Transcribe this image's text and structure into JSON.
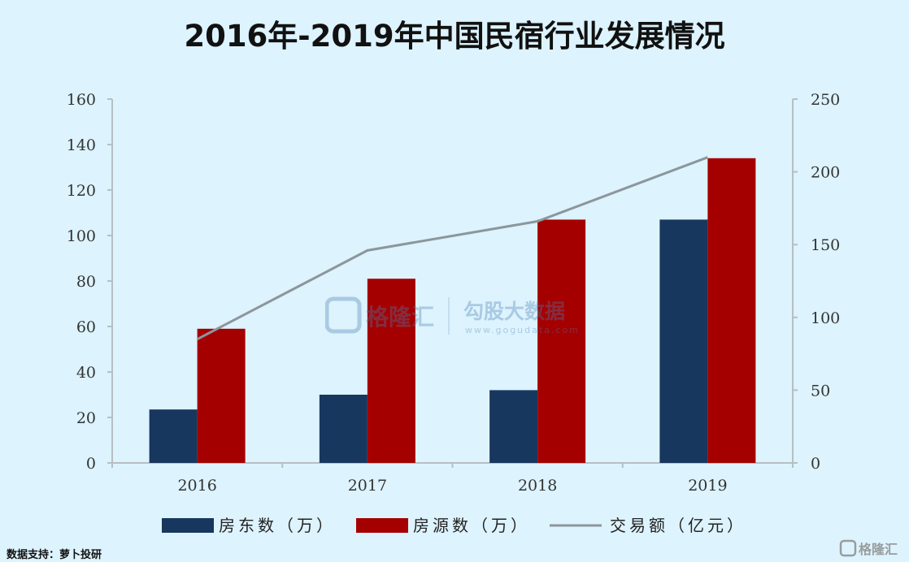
{
  "title": "2016年-2019年中国民宿行业发展情况",
  "source": "数据支持：萝卜投研",
  "watermark": {
    "brand": "格隆汇",
    "tagline": "勾股大数据",
    "url": "www.gogudata.com"
  },
  "colors": {
    "background": "#ddf3fd",
    "landlords": "#17375e",
    "listings": "#a50000",
    "transactions": "#8c969c",
    "axis": "#b7bfc4"
  },
  "chart_data": {
    "type": "bar",
    "categories": [
      "2016",
      "2017",
      "2018",
      "2019"
    ],
    "series": [
      {
        "name": "房东数（万）",
        "type": "bar",
        "axis": "left",
        "values": [
          23.5,
          30,
          32,
          107
        ]
      },
      {
        "name": "房源数（万）",
        "type": "bar",
        "axis": "left",
        "values": [
          59,
          81,
          107,
          134
        ]
      },
      {
        "name": "交易额（亿元）",
        "type": "line",
        "axis": "right",
        "values": [
          85,
          146,
          166,
          210
        ]
      }
    ],
    "left_axis": {
      "min": 0,
      "max": 160,
      "step": 20,
      "ticks": [
        "0",
        "20",
        "40",
        "60",
        "80",
        "100",
        "120",
        "140",
        "160"
      ]
    },
    "right_axis": {
      "min": 0,
      "max": 250,
      "step": 50,
      "ticks": [
        "0",
        "50",
        "100",
        "150",
        "200",
        "250"
      ]
    },
    "legend_position": "bottom",
    "grid": false
  }
}
